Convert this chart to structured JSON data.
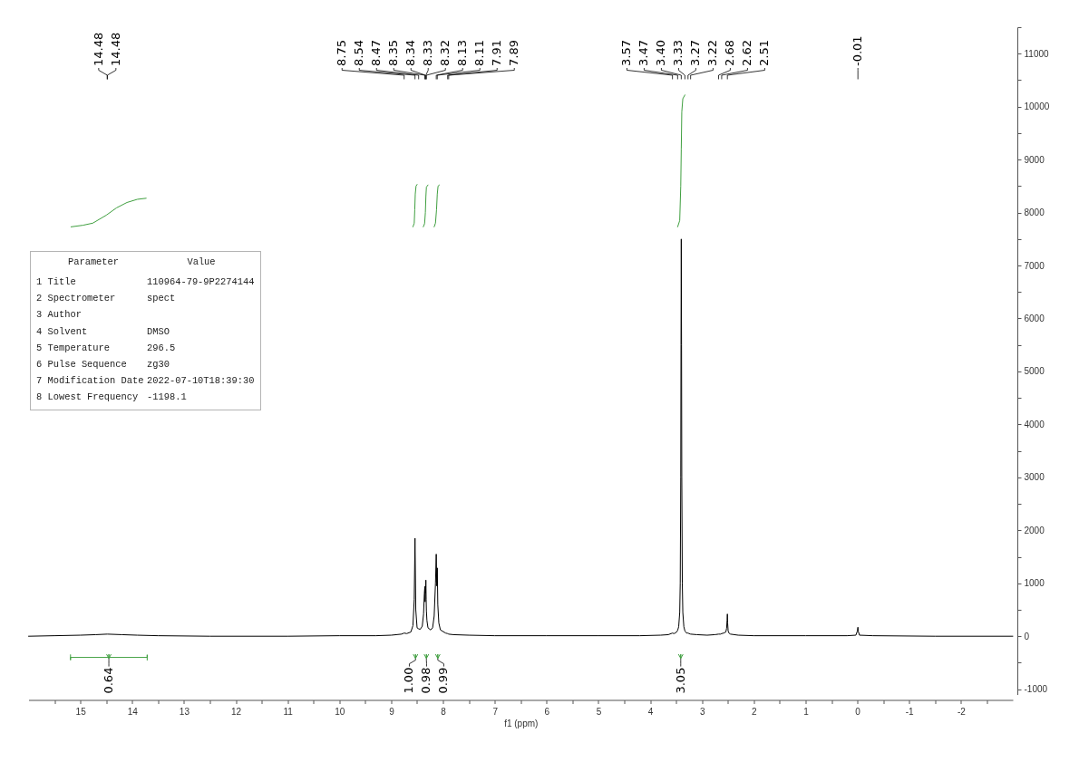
{
  "chart_data": [
    {
      "type": "line",
      "xlabel": "f1 (ppm)",
      "xlim": [
        16,
        -3
      ],
      "ylim": [
        -1100,
        11500
      ],
      "xticks": [
        15,
        14,
        13,
        12,
        11,
        10,
        9,
        8,
        7,
        6,
        5,
        4,
        3,
        2,
        1,
        0,
        -1,
        -2,
        {
          "value": 15.5,
          "label": null
        },
        {
          "value": 14.5,
          "label": null
        },
        {
          "value": 13.5,
          "label": null
        },
        {
          "value": 12.5,
          "label": null
        },
        {
          "value": 11.5,
          "label": null
        },
        {
          "value": 10.5,
          "label": null
        },
        {
          "value": 9.5,
          "label": null
        },
        {
          "value": 8.5,
          "label": null
        },
        {
          "value": 7.5,
          "label": null
        },
        {
          "value": 6.5,
          "label": null
        },
        {
          "value": 5.5,
          "label": null
        },
        {
          "value": 4.5,
          "label": null
        },
        {
          "value": 3.5,
          "label": null
        },
        {
          "value": 2.5,
          "label": null
        },
        {
          "value": 1.5,
          "label": null
        },
        {
          "value": 0.5,
          "label": null
        },
        {
          "value": -0.5,
          "label": null
        },
        {
          "value": -1.5,
          "label": null
        },
        {
          "value": -2.5,
          "label": null
        }
      ],
      "yticks": [
        -1000,
        0,
        1000,
        2000,
        3000,
        4000,
        5000,
        6000,
        7000,
        8000,
        9000,
        10000,
        11000,
        {
          "value": -500,
          "label": null
        },
        {
          "value": 500,
          "label": null
        },
        {
          "value": 1500,
          "label": null
        },
        {
          "value": 2500,
          "label": null
        },
        {
          "value": 3500,
          "label": null
        },
        {
          "value": 4500,
          "label": null
        },
        {
          "value": 5500,
          "label": null
        },
        {
          "value": 6500,
          "label": null
        },
        {
          "value": 7500,
          "label": null
        },
        {
          "value": 8500,
          "label": null
        },
        {
          "value": 9500,
          "label": null
        },
        {
          "value": 10500,
          "label": null
        },
        {
          "value": 11500,
          "label": null
        }
      ],
      "series": [
        {
          "color": "#000000",
          "x": [
            16,
            15.5,
            15,
            14.7,
            14.48,
            14.2,
            13.9,
            13.5,
            12.5,
            11,
            10,
            9.3,
            9,
            8.8,
            8.75,
            8.7,
            8.62,
            8.58,
            8.555,
            8.54,
            8.525,
            8.5,
            8.47,
            8.44,
            8.4,
            8.375,
            8.36,
            8.35,
            8.345,
            8.34,
            8.335,
            8.33,
            8.325,
            8.32,
            8.31,
            8.29,
            8.24,
            8.2,
            8.17,
            8.145,
            8.13,
            8.12,
            8.11,
            8.1,
            8.08,
            8.05,
            7.95,
            7.91,
            7.89,
            7.8,
            7.5,
            7,
            6,
            5,
            4.2,
            3.8,
            3.65,
            3.57,
            3.54,
            3.5,
            3.47,
            3.45,
            3.43,
            3.42,
            3.41,
            3.405,
            3.4,
            3.395,
            3.39,
            3.38,
            3.37,
            3.35,
            3.33,
            3.3,
            3.27,
            3.25,
            3.22,
            3.1,
            2.9,
            2.75,
            2.68,
            2.64,
            2.62,
            2.58,
            2.54,
            2.525,
            2.515,
            2.51,
            2.505,
            2.495,
            2.48,
            2.45,
            2.3,
            2,
            1,
            0.2,
            0.03,
            0,
            -0.01,
            -0.015,
            -0.04,
            -0.3,
            -1.5,
            -3
          ],
          "values": [
            0,
            10,
            20,
            30,
            40,
            30,
            20,
            10,
            0,
            0,
            10,
            10,
            20,
            40,
            60,
            50,
            80,
            200,
            700,
            1850,
            500,
            160,
            140,
            130,
            190,
            420,
            800,
            940,
            650,
            880,
            820,
            1060,
            700,
            480,
            300,
            160,
            120,
            160,
            380,
            1000,
            1550,
            950,
            1290,
            600,
            250,
            120,
            60,
            50,
            40,
            30,
            20,
            10,
            10,
            10,
            10,
            20,
            30,
            60,
            50,
            70,
            110,
            180,
            450,
            1000,
            3000,
            5500,
            7500,
            5500,
            3000,
            1000,
            450,
            180,
            100,
            60,
            60,
            50,
            40,
            30,
            20,
            30,
            40,
            40,
            50,
            60,
            80,
            150,
            300,
            420,
            250,
            100,
            60,
            40,
            20,
            10,
            10,
            10,
            20,
            100,
            170,
            100,
            20,
            10,
            0,
            0
          ]
        },
        {
          "color": "#3f9f3f",
          "x": [
            15.18,
            14.95,
            14.76,
            14.5,
            14.3,
            14.1,
            13.9,
            13.73
          ],
          "values": [
            7730,
            7760,
            7800,
            7950,
            8090,
            8190,
            8250,
            8270
          ]
        },
        {
          "color": "#3f9f3f",
          "x": [
            8.58,
            8.555,
            8.545,
            8.535,
            8.52,
            8.5
          ],
          "values": [
            7730,
            7800,
            8050,
            8350,
            8500,
            8530
          ]
        },
        {
          "color": "#3f9f3f",
          "x": [
            8.38,
            8.355,
            8.34,
            8.33,
            8.32,
            8.29
          ],
          "values": [
            7730,
            7790,
            8000,
            8300,
            8480,
            8520
          ]
        },
        {
          "color": "#3f9f3f",
          "x": [
            8.17,
            8.145,
            8.125,
            8.11,
            8.095,
            8.07
          ],
          "values": [
            7730,
            7800,
            8050,
            8350,
            8500,
            8520
          ]
        },
        {
          "color": "#3f9f3f",
          "x": [
            3.47,
            3.43,
            3.41,
            3.4,
            3.39,
            3.37,
            3.33
          ],
          "values": [
            7730,
            7850,
            8500,
            9200,
            9900,
            10150,
            10220
          ]
        },
        {
          "color": "#3f9f3f",
          "x": [
            15.19,
            15.19,
            15.19,
            13.71,
            13.71,
            13.71
          ],
          "values": [
            -350,
            -450,
            -400,
            -400,
            -350,
            -450
          ]
        }
      ],
      "annotations": [
        {
          "text": "14.48",
          "x": 14.48
        },
        {
          "text": "14.48",
          "x": 14.48
        },
        {
          "text": "8.75",
          "x": 8.75
        },
        {
          "text": "8.54",
          "x": 8.54
        },
        {
          "text": "8.47",
          "x": 8.47
        },
        {
          "text": "8.35",
          "x": 8.35
        },
        {
          "text": "8.34",
          "x": 8.34
        },
        {
          "text": "8.33",
          "x": 8.33
        },
        {
          "text": "8.32",
          "x": 8.32
        },
        {
          "text": "8.13",
          "x": 8.13
        },
        {
          "text": "8.11",
          "x": 8.11
        },
        {
          "text": "7.91",
          "x": 7.91
        },
        {
          "text": "7.89",
          "x": 7.89
        },
        {
          "text": "3.57",
          "x": 3.57
        },
        {
          "text": "3.47",
          "x": 3.47
        },
        {
          "text": "3.40",
          "x": 3.4
        },
        {
          "text": "3.33",
          "x": 3.33
        },
        {
          "text": "3.27",
          "x": 3.27
        },
        {
          "text": "3.22",
          "x": 3.22
        },
        {
          "text": "2.68",
          "x": 2.68
        },
        {
          "text": "2.62",
          "x": 2.62
        },
        {
          "text": "2.51",
          "x": 2.51
        },
        {
          "text": "-0.01",
          "x": -0.01
        },
        {
          "text": "0.64",
          "x": 14.45,
          "y": -400
        },
        {
          "text": "1.00",
          "x": 8.53,
          "y": -400
        },
        {
          "text": "0.98",
          "x": 8.32,
          "y": -400
        },
        {
          "text": "0.99",
          "x": 8.1,
          "y": -400
        },
        {
          "text": "3.05",
          "x": 3.41,
          "y": -400
        }
      ]
    },
    {
      "type": "other",
      "annotations": [
        "Parameter",
        "Value"
      ],
      "categories": [
        "1 Title",
        "2 Spectrometer",
        "3 Author",
        "4 Solvent",
        "5 Temperature",
        "6 Pulse Sequence",
        "7 Modification Date",
        "8 Lowest Frequency"
      ],
      "value_labels": [
        "110964-79-9P2274144",
        "spect",
        null,
        "DMSO",
        "296.5",
        "zg30",
        "2022-07-10T18:39:30",
        "-1198.1"
      ]
    }
  ]
}
